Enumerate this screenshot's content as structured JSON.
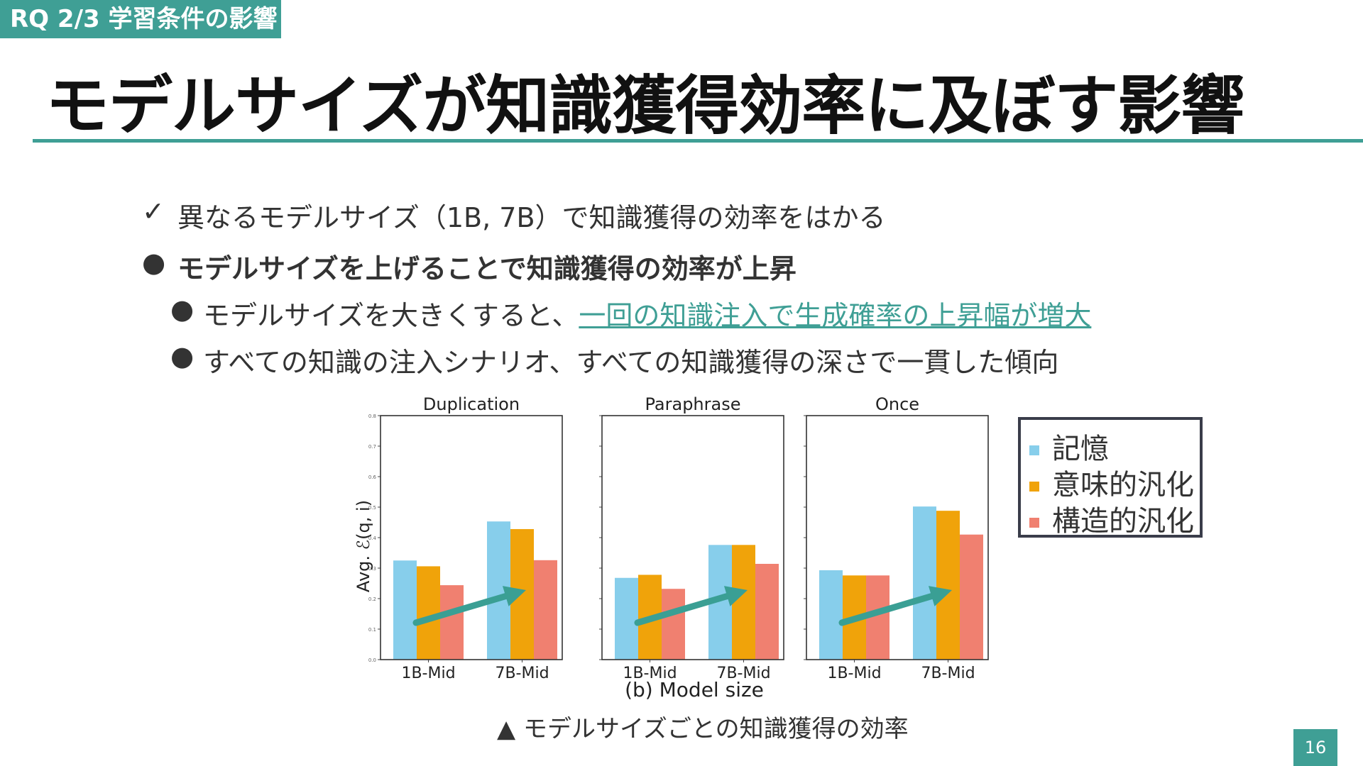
{
  "header": {
    "tag": "RQ 2/3 学習条件の影響",
    "title": "モデルサイズが知識獲得効率に及ぼす影響"
  },
  "bullets": {
    "check_mark": "✓",
    "dot_mark": "●",
    "b1": "異なるモデルサイズ（1B, 7B）で知識獲得の効率をはかる",
    "b2": "モデルサイズを上げることで知識獲得の効率が上昇",
    "b3_prefix": "モデルサイズを大きくすると、",
    "b3_link": "一回の知識注入で生成確率の上昇幅が増大",
    "b4": "すべての知識の注入シナリオ、すべての知識獲得の深さで一貫した傾向"
  },
  "chart_data": {
    "type": "bar",
    "ylabel": "Avg. ℰ(q, i)",
    "xlabel": "(b) Model size",
    "ylim": [
      0,
      0.8
    ],
    "yticks": [
      "0.0",
      "0.1",
      "0.2",
      "0.3",
      "0.4",
      "0.5",
      "0.6",
      "0.7",
      "0.8"
    ],
    "categories": [
      "1B-Mid",
      "7B-Mid"
    ],
    "colors": [
      "#87ceeb",
      "#f0a30a",
      "#f08070"
    ],
    "arrow_color": "#3a9f94",
    "panels": [
      {
        "title": "Duplication",
        "series": [
          {
            "name": "記憶",
            "values": [
              0.325,
              0.453
            ]
          },
          {
            "name": "意味的汎化",
            "values": [
              0.306,
              0.428
            ]
          },
          {
            "name": "構造的汎化",
            "values": [
              0.244,
              0.326
            ]
          }
        ]
      },
      {
        "title": "Paraphrase",
        "series": [
          {
            "name": "記憶",
            "values": [
              0.268,
              0.376
            ]
          },
          {
            "name": "意味的汎化",
            "values": [
              0.278,
              0.376
            ]
          },
          {
            "name": "構造的汎化",
            "values": [
              0.232,
              0.314
            ]
          }
        ]
      },
      {
        "title": "Once",
        "series": [
          {
            "name": "記憶",
            "values": [
              0.293,
              0.502
            ]
          },
          {
            "name": "意味的汎化",
            "values": [
              0.276,
              0.488
            ]
          },
          {
            "name": "構造的汎化",
            "values": [
              0.276,
              0.41
            ]
          }
        ]
      }
    ]
  },
  "legend": {
    "items": [
      "記憶",
      "意味的汎化",
      "構造的汎化"
    ]
  },
  "caption": "▲ モデルサイズごとの知識獲得の効率",
  "page_number": "16"
}
